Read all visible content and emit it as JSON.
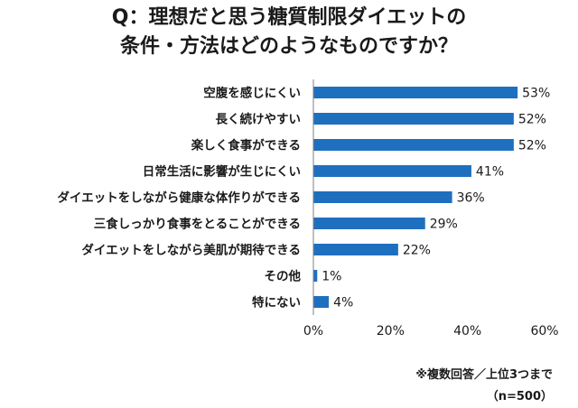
{
  "header": {
    "title_line1": "Q：理想だと思う糖質制限ダイエットの",
    "title_line2": "条件・方法はどのようなものですか？"
  },
  "footer": {
    "note": "※複数回答／上位3つまで",
    "sample": "（n=500）"
  },
  "chart_data": {
    "type": "bar",
    "orientation": "horizontal",
    "categories": [
      "空腹を感じにくい",
      "長く続けやすい",
      "楽しく食事ができる",
      "日常生活に影響が生じにくい",
      "ダイエットをしながら健康な体作りができる",
      "三食しっかり食事をとることができる",
      "ダイエットをしながら美肌が期待できる",
      "その他",
      "特にない"
    ],
    "values": [
      53,
      52,
      52,
      41,
      36,
      29,
      22,
      1,
      4
    ],
    "value_labels": [
      "53%",
      "52%",
      "52%",
      "41%",
      "36%",
      "29%",
      "22%",
      "1%",
      "4%"
    ],
    "xlim": [
      0,
      60
    ],
    "xticks": [
      "0%",
      "20%",
      "40%",
      "60%"
    ],
    "xtick_values": [
      0,
      20,
      40,
      60
    ],
    "bar_color": "#1f6fbf",
    "grid": false,
    "legend": "none"
  }
}
